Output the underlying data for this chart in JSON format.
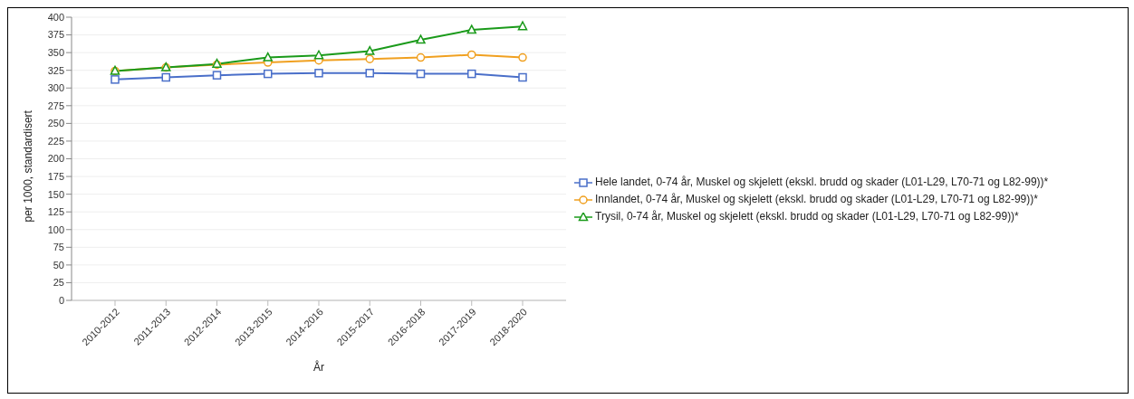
{
  "chart_data": {
    "type": "line",
    "xlabel": "År",
    "ylabel": "per 1000, standardisert",
    "categories": [
      "2010-2012",
      "2011-2013",
      "2012-2014",
      "2013-2015",
      "2014-2016",
      "2015-2017",
      "2016-2018",
      "2017-2019",
      "2018-2020"
    ],
    "series": [
      {
        "name": "Hele landet, 0-74 år, Muskel og skjelett (ekskl. brudd og skader (L01-L29, L70-71 og L82-99))*",
        "color": "#4a6fc9",
        "marker": "square",
        "values": [
          312,
          315,
          318,
          320,
          321,
          321,
          320,
          320,
          315
        ]
      },
      {
        "name": "Innlandet, 0-74 år, Muskel og skjelett (ekskl. brudd og skader (L01-L29, L70-71 og L82-99))*",
        "color": "#f0a020",
        "marker": "circle",
        "values": [
          324,
          329,
          333,
          336,
          339,
          341,
          343,
          347,
          343
        ]
      },
      {
        "name": "Trysil, 0-74 år, Muskel og skjelett (ekskl. brudd og skader (L01-L29, L70-71 og L82-99))*",
        "color": "#1a9a1a",
        "marker": "triangle",
        "values": [
          324,
          329,
          334,
          343,
          346,
          352,
          368,
          382,
          387
        ]
      }
    ],
    "ylim": [
      0,
      400
    ],
    "yticks": [
      0,
      25,
      50,
      75,
      100,
      125,
      150,
      175,
      200,
      225,
      250,
      275,
      300,
      325,
      350,
      375,
      400
    ],
    "grid": "y",
    "legend": "right",
    "line_style": "solid"
  }
}
